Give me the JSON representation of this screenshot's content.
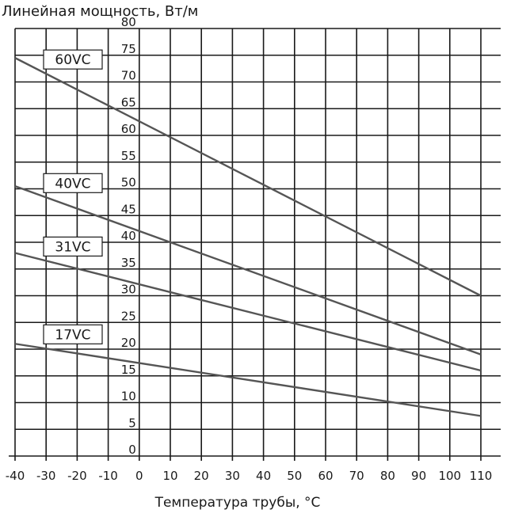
{
  "chart_data": {
    "type": "line",
    "ylabel": "Линейная мощность, Вт/м",
    "xlabel": "Температура трубы, °С",
    "xlim": [
      -40,
      110
    ],
    "ylim": [
      0,
      80
    ],
    "x_ticks": [
      "-40",
      "-30",
      "-20",
      "-10",
      "0",
      "10",
      "20",
      "30",
      "40",
      "50",
      "60",
      "70",
      "80",
      "90",
      "100",
      "110"
    ],
    "y_ticks": [
      "0",
      "5",
      "10",
      "15",
      "20",
      "25",
      "30",
      "35",
      "40",
      "45",
      "50",
      "55",
      "60",
      "65",
      "70",
      "75",
      "80"
    ],
    "grid": true,
    "series": [
      {
        "name": "60VC",
        "x": [
          -40,
          110
        ],
        "y": [
          74.5,
          30
        ],
        "color": "#555555"
      },
      {
        "name": "40VC",
        "x": [
          -40,
          110
        ],
        "y": [
          50.5,
          19
        ],
        "color": "#555555"
      },
      {
        "name": "31VC",
        "x": [
          -40,
          110
        ],
        "y": [
          38,
          16
        ],
        "color": "#555555"
      },
      {
        "name": "17VC",
        "x": [
          -40,
          110
        ],
        "y": [
          21,
          7.5
        ],
        "color": "#555555"
      }
    ]
  }
}
